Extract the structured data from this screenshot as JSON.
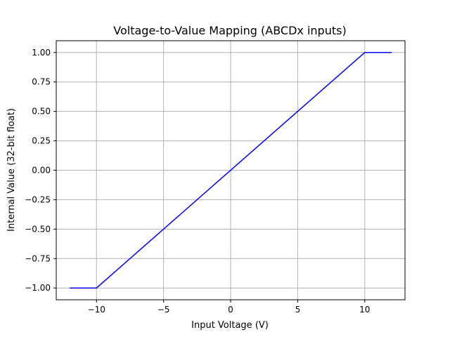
{
  "chart_data": {
    "type": "line",
    "title": "Voltage-to-Value Mapping (ABCDx inputs)",
    "xlabel": "Input Voltage (V)",
    "ylabel": "Internal Value (32-bit float)",
    "xlim": [
      -13,
      13
    ],
    "ylim": [
      -1.1,
      1.1
    ],
    "xticks": [
      -10,
      -5,
      0,
      5,
      10
    ],
    "xtick_labels": [
      "−10",
      "−5",
      "0",
      "5",
      "10"
    ],
    "yticks": [
      -1.0,
      -0.75,
      -0.5,
      -0.25,
      0.0,
      0.25,
      0.5,
      0.75,
      1.0
    ],
    "ytick_labels": [
      "−1.00",
      "−0.75",
      "−0.50",
      "−0.25",
      "0.00",
      "0.25",
      "0.50",
      "0.75",
      "1.00"
    ],
    "grid": true,
    "legend": "none",
    "series": [
      {
        "color": "#0000ff",
        "x": [
          -12,
          -10,
          10,
          12
        ],
        "y": [
          -1.0,
          -1.0,
          1.0,
          1.0
        ]
      }
    ]
  }
}
